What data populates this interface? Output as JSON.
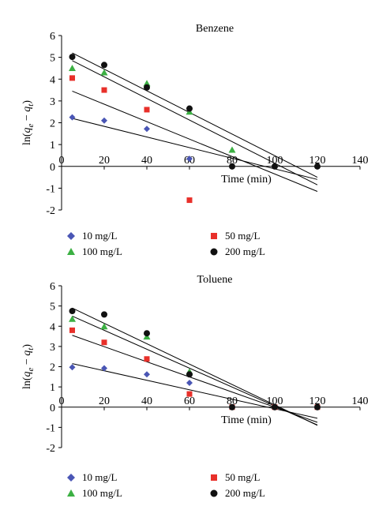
{
  "chart_data": [
    {
      "type": "scatter",
      "title": "Benzene",
      "ylabel": "ln(q_e − q_t)",
      "ylabel_parts": {
        "prefix": "ln(",
        "q": "q",
        "e": "e",
        "minus": " − ",
        "t": "t",
        "suffix": ")"
      },
      "xlabel": "Time (min)",
      "xlim": [
        0,
        140
      ],
      "ylim": [
        -2,
        6
      ],
      "xticks": [
        0,
        20,
        40,
        60,
        80,
        100,
        120,
        140
      ],
      "yticks": [
        -2,
        -1,
        0,
        1,
        2,
        3,
        4,
        5,
        6
      ],
      "series": [
        {
          "name": "10 mg/L",
          "marker": "diamond",
          "color": "#4a56b5",
          "x": [
            5,
            20,
            40,
            60
          ],
          "y": [
            2.25,
            2.1,
            1.72,
            0.35
          ],
          "fit": {
            "x": [
              5,
              120
            ],
            "y": [
              2.2,
              -0.6
            ]
          }
        },
        {
          "name": "50 mg/L",
          "marker": "square",
          "color": "#e8302a",
          "x": [
            5,
            20,
            40,
            60
          ],
          "y": [
            4.05,
            3.5,
            2.6,
            -1.55
          ],
          "fit": {
            "x": [
              5,
              120
            ],
            "y": [
              3.45,
              -1.15
            ]
          }
        },
        {
          "name": "100 mg/L",
          "marker": "triangle",
          "color": "#3cb043",
          "x": [
            5,
            20,
            40,
            60,
            80
          ],
          "y": [
            4.5,
            4.3,
            3.8,
            2.5,
            0.75
          ],
          "fit": {
            "x": [
              5,
              120
            ],
            "y": [
              4.85,
              -0.85
            ]
          }
        },
        {
          "name": "200 mg/L",
          "marker": "circle",
          "color": "#111111",
          "x": [
            5,
            20,
            40,
            60,
            80,
            100,
            120
          ],
          "y": [
            5.02,
            4.65,
            3.62,
            2.65,
            0.0,
            0.0,
            0.0
          ],
          "fit": {
            "x": [
              5,
              120
            ],
            "y": [
              5.2,
              -0.5
            ]
          }
        }
      ]
    },
    {
      "type": "scatter",
      "title": "Toluene",
      "ylabel": "ln(q_e − q_t)",
      "ylabel_parts": {
        "prefix": "ln(",
        "q": "q",
        "e": "e",
        "minus": " − ",
        "t": "t",
        "suffix": ")"
      },
      "xlabel": "Time (min)",
      "xlim": [
        0,
        140
      ],
      "ylim": [
        -2,
        6
      ],
      "xticks": [
        0,
        20,
        40,
        60,
        80,
        100,
        120,
        140
      ],
      "yticks": [
        -2,
        -1,
        0,
        1,
        2,
        3,
        4,
        5,
        6
      ],
      "series": [
        {
          "name": "10 mg/L",
          "marker": "diamond",
          "color": "#4a56b5",
          "x": [
            5,
            20,
            40,
            60
          ],
          "y": [
            1.97,
            1.92,
            1.62,
            1.2
          ],
          "fit": {
            "x": [
              5,
              120
            ],
            "y": [
              2.15,
              -0.55
            ]
          }
        },
        {
          "name": "50 mg/L",
          "marker": "square",
          "color": "#e8302a",
          "x": [
            5,
            20,
            40,
            60,
            80,
            100,
            120
          ],
          "y": [
            3.8,
            3.2,
            2.38,
            0.65,
            0.0,
            0.0,
            0.0
          ],
          "fit": {
            "x": [
              5,
              120
            ],
            "y": [
              3.55,
              -0.75
            ]
          }
        },
        {
          "name": "100 mg/L",
          "marker": "triangle",
          "color": "#3cb043",
          "x": [
            5,
            20,
            40,
            60
          ],
          "y": [
            4.35,
            3.98,
            3.48,
            1.75
          ],
          "fit": {
            "x": [
              5,
              120
            ],
            "y": [
              4.5,
              -0.88
            ]
          }
        },
        {
          "name": "200 mg/L",
          "marker": "circle",
          "color": "#111111",
          "x": [
            5,
            20,
            40,
            60,
            80,
            100,
            120
          ],
          "y": [
            4.75,
            4.58,
            3.65,
            1.62,
            0.0,
            0.0,
            0.0
          ],
          "fit": {
            "x": [
              5,
              120
            ],
            "y": [
              4.9,
              -0.9
            ]
          }
        }
      ]
    }
  ],
  "legend_labels": [
    "10 mg/L",
    "50 mg/L",
    "100 mg/L",
    "200 mg/L"
  ]
}
